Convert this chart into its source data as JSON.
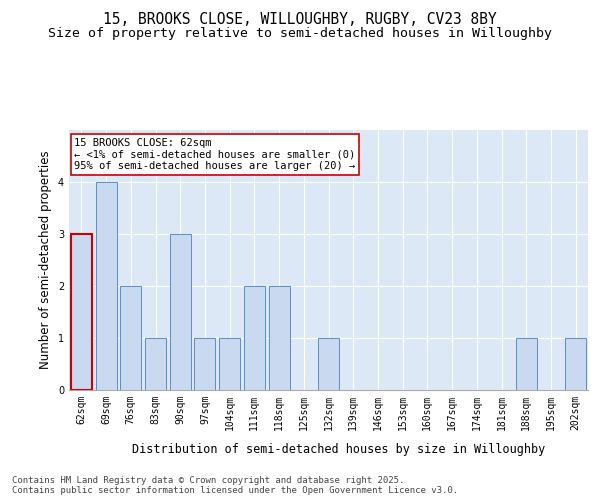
{
  "title_line1": "15, BROOKS CLOSE, WILLOUGHBY, RUGBY, CV23 8BY",
  "title_line2": "Size of property relative to semi-detached houses in Willoughby",
  "xlabel": "Distribution of semi-detached houses by size in Willoughby",
  "ylabel": "Number of semi-detached properties",
  "categories": [
    "62sqm",
    "69sqm",
    "76sqm",
    "83sqm",
    "90sqm",
    "97sqm",
    "104sqm",
    "111sqm",
    "118sqm",
    "125sqm",
    "132sqm",
    "139sqm",
    "146sqm",
    "153sqm",
    "160sqm",
    "167sqm",
    "174sqm",
    "181sqm",
    "188sqm",
    "195sqm",
    "202sqm"
  ],
  "values": [
    3,
    4,
    2,
    1,
    3,
    1,
    1,
    2,
    2,
    0,
    1,
    0,
    0,
    0,
    0,
    0,
    0,
    0,
    1,
    0,
    1
  ],
  "subject_bar_index": 0,
  "bar_color": "#c9d9f0",
  "bar_edge_color": "#5b8dc8",
  "subject_bar_edge_color": "#cc0000",
  "annotation_box_text": "15 BROOKS CLOSE: 62sqm\n← <1% of semi-detached houses are smaller (0)\n95% of semi-detached houses are larger (20) →",
  "ylim": [
    0,
    5
  ],
  "yticks": [
    0,
    1,
    2,
    3,
    4,
    5
  ],
  "background_color": "#dce8f5",
  "grid_color": "#ffffff",
  "footer_text": "Contains HM Land Registry data © Crown copyright and database right 2025.\nContains public sector information licensed under the Open Government Licence v3.0.",
  "title_fontsize": 10.5,
  "subtitle_fontsize": 9.5,
  "axis_label_fontsize": 8.5,
  "tick_fontsize": 7,
  "annotation_fontsize": 7.5,
  "footer_fontsize": 6.5
}
